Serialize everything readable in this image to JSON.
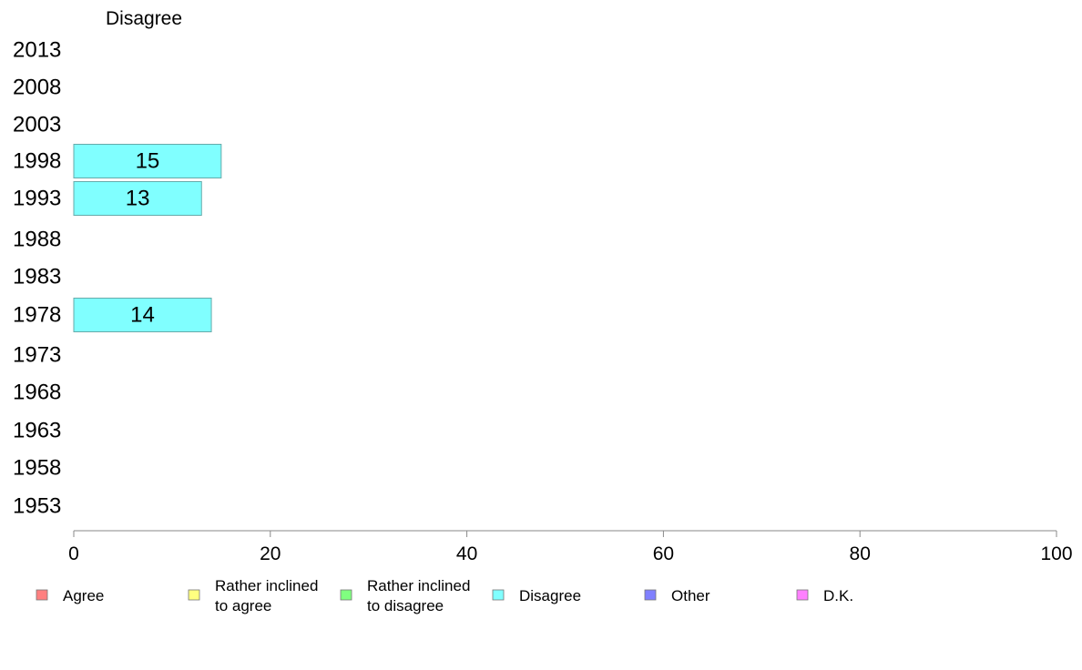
{
  "chart_data": {
    "type": "bar",
    "orientation": "horizontal",
    "title": "Disagree",
    "categories": [
      "2013",
      "2008",
      "2003",
      "1998",
      "1993",
      "1988",
      "1983",
      "1978",
      "1973",
      "1968",
      "1963",
      "1958",
      "1953"
    ],
    "series": [
      {
        "name": "Disagree",
        "color": "#80ffff",
        "values": [
          null,
          null,
          null,
          15,
          13,
          null,
          null,
          14,
          null,
          null,
          null,
          null,
          null
        ]
      }
    ],
    "xlim": [
      0,
      100
    ],
    "xticks": [
      0,
      20,
      40,
      60,
      80,
      100
    ],
    "legend": [
      {
        "lines": [
          "Agree"
        ],
        "color": "#ff8080"
      },
      {
        "lines": [
          "Rather inclined",
          "to agree"
        ],
        "color": "#ffff80"
      },
      {
        "lines": [
          "Rather inclined",
          "to disagree"
        ],
        "color": "#80ff80"
      },
      {
        "lines": [
          "Disagree"
        ],
        "color": "#80ffff"
      },
      {
        "lines": [
          "Other"
        ],
        "color": "#8080ff"
      },
      {
        "lines": [
          "D.K."
        ],
        "color": "#ff80ff"
      }
    ],
    "legend_position": "bottom",
    "grid": false
  }
}
